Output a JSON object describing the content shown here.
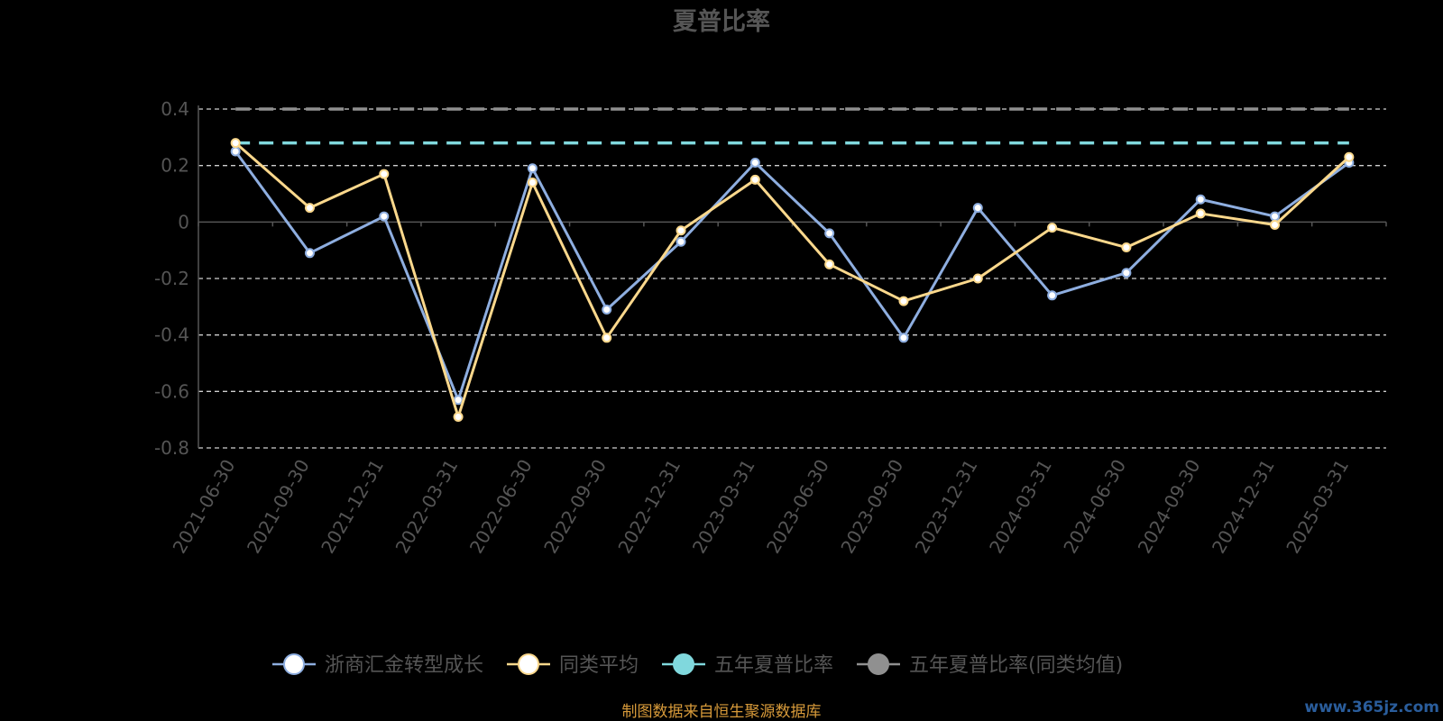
{
  "chart_data": {
    "type": "line",
    "title": "夏普比率",
    "categories": [
      "2021-06-30",
      "2021-09-30",
      "2021-12-31",
      "2022-03-31",
      "2022-06-30",
      "2022-09-30",
      "2022-12-31",
      "2023-03-31",
      "2023-06-30",
      "2023-09-30",
      "2023-12-31",
      "2024-03-31",
      "2024-06-30",
      "2024-09-30",
      "2024-12-31",
      "2025-03-31"
    ],
    "ylim": [
      -0.8,
      0.4
    ],
    "yticks": [
      0.4,
      0.2,
      0,
      -0.2,
      -0.4,
      -0.6,
      -0.8
    ],
    "ytick_labels": [
      "0.4",
      "0.2",
      "0",
      "-0.2",
      "-0.4",
      "-0.6",
      "-0.8"
    ],
    "grid": true,
    "legend_position": "bottom",
    "series": [
      {
        "name": "浙商汇金转型成长",
        "color": "#8eaee0",
        "values": [
          0.25,
          -0.11,
          0.02,
          -0.63,
          0.19,
          -0.31,
          -0.07,
          0.21,
          -0.04,
          -0.41,
          0.05,
          -0.26,
          -0.18,
          0.08,
          0.02,
          0.21
        ]
      },
      {
        "name": "同类平均",
        "color": "#fbd88c",
        "values": [
          0.28,
          0.05,
          0.17,
          -0.69,
          0.14,
          -0.41,
          -0.03,
          0.15,
          -0.15,
          -0.28,
          -0.2,
          -0.02,
          -0.09,
          0.03,
          -0.01,
          0.23
        ]
      },
      {
        "name": "五年夏普比率",
        "color": "#80d8dd",
        "style": "dashed",
        "constant": 0.28
      },
      {
        "name": "五年夏普比率(同类均值)",
        "color": "#909090",
        "style": "dashed",
        "constant": 0.4
      }
    ]
  },
  "source_note": "制图数据来自恒生聚源数据库",
  "watermark": "www.365jz.com"
}
